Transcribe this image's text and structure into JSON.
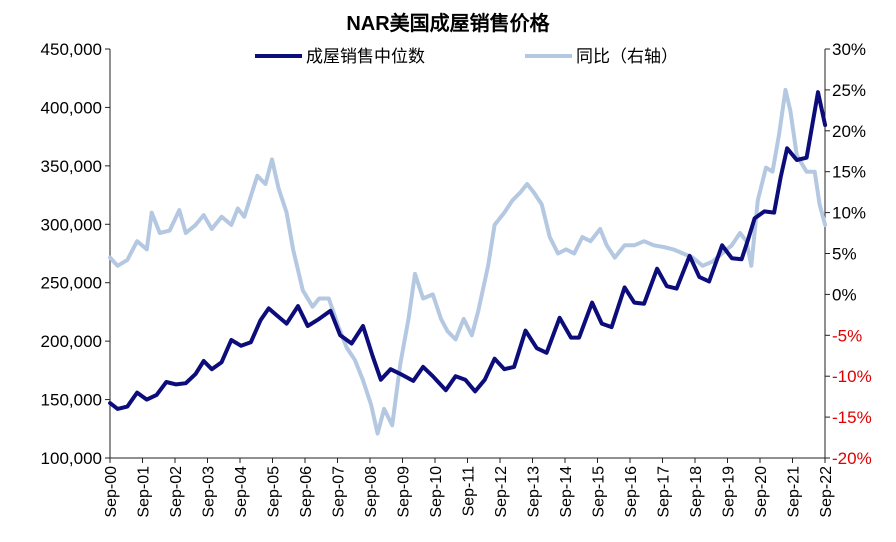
{
  "chart_data": {
    "type": "line",
    "title": "NAR美国成屋销售价格",
    "x_start": "2000-09",
    "x_end": "2022-09",
    "x_ticks": [
      "Sep-00",
      "Sep-01",
      "Sep-02",
      "Sep-03",
      "Sep-04",
      "Sep-05",
      "Sep-06",
      "Sep-07",
      "Sep-08",
      "Sep-09",
      "Sep-10",
      "Sep-11",
      "Sep-12",
      "Sep-13",
      "Sep-14",
      "Sep-15",
      "Sep-16",
      "Sep-17",
      "Sep-18",
      "Sep-19",
      "Sep-20",
      "Sep-21",
      "Sep-22"
    ],
    "left_axis": {
      "ylim": [
        100000,
        450000
      ],
      "ticks": [
        "100,000",
        "150,000",
        "200,000",
        "250,000",
        "300,000",
        "350,000",
        "400,000",
        "450,000"
      ]
    },
    "right_axis": {
      "ylim": [
        -20,
        30
      ],
      "ticks": [
        {
          "label": "-20%",
          "negative": true
        },
        {
          "label": "-15%",
          "negative": true
        },
        {
          "label": "-10%",
          "negative": true
        },
        {
          "label": "-5%",
          "negative": true
        },
        {
          "label": "0%",
          "negative": false
        },
        {
          "label": "5%",
          "negative": false
        },
        {
          "label": "10%",
          "negative": false
        },
        {
          "label": "15%",
          "negative": false
        },
        {
          "label": "20%",
          "negative": false
        },
        {
          "label": "25%",
          "negative": false
        },
        {
          "label": "30%",
          "negative": false
        }
      ]
    },
    "series": [
      {
        "name": "成屋销售中位数",
        "axis": "left",
        "color": "#0c0d7a",
        "points": [
          [
            2000.67,
            147000
          ],
          [
            2000.9,
            142000
          ],
          [
            2001.2,
            144000
          ],
          [
            2001.5,
            156000
          ],
          [
            2001.8,
            150000
          ],
          [
            2002.1,
            154000
          ],
          [
            2002.4,
            165000
          ],
          [
            2002.7,
            163000
          ],
          [
            2003.0,
            164000
          ],
          [
            2003.3,
            172000
          ],
          [
            2003.55,
            183000
          ],
          [
            2003.8,
            176000
          ],
          [
            2004.1,
            182000
          ],
          [
            2004.4,
            201000
          ],
          [
            2004.7,
            196000
          ],
          [
            2005.0,
            199000
          ],
          [
            2005.3,
            218000
          ],
          [
            2005.55,
            228000
          ],
          [
            2005.8,
            222000
          ],
          [
            2006.1,
            215000
          ],
          [
            2006.45,
            230000
          ],
          [
            2006.75,
            213000
          ],
          [
            2007.1,
            219000
          ],
          [
            2007.45,
            226000
          ],
          [
            2007.75,
            205000
          ],
          [
            2008.1,
            198000
          ],
          [
            2008.45,
            213000
          ],
          [
            2008.75,
            187000
          ],
          [
            2009.0,
            167000
          ],
          [
            2009.3,
            176000
          ],
          [
            2009.6,
            172000
          ],
          [
            2010.0,
            166000
          ],
          [
            2010.3,
            178000
          ],
          [
            2010.6,
            170000
          ],
          [
            2011.0,
            158000
          ],
          [
            2011.3,
            170000
          ],
          [
            2011.6,
            167000
          ],
          [
            2011.9,
            157000
          ],
          [
            2012.2,
            167000
          ],
          [
            2012.5,
            185000
          ],
          [
            2012.8,
            176000
          ],
          [
            2013.1,
            178000
          ],
          [
            2013.45,
            209000
          ],
          [
            2013.8,
            194000
          ],
          [
            2014.1,
            190000
          ],
          [
            2014.5,
            220000
          ],
          [
            2014.85,
            203000
          ],
          [
            2015.1,
            203000
          ],
          [
            2015.5,
            233000
          ],
          [
            2015.8,
            215000
          ],
          [
            2016.1,
            212000
          ],
          [
            2016.5,
            246000
          ],
          [
            2016.8,
            233000
          ],
          [
            2017.1,
            232000
          ],
          [
            2017.5,
            262000
          ],
          [
            2017.8,
            247000
          ],
          [
            2018.1,
            245000
          ],
          [
            2018.5,
            273000
          ],
          [
            2018.8,
            255000
          ],
          [
            2019.1,
            251000
          ],
          [
            2019.5,
            282000
          ],
          [
            2019.8,
            271000
          ],
          [
            2020.1,
            270000
          ],
          [
            2020.3,
            287000
          ],
          [
            2020.5,
            305000
          ],
          [
            2020.8,
            311000
          ],
          [
            2021.1,
            310000
          ],
          [
            2021.3,
            340000
          ],
          [
            2021.5,
            365000
          ],
          [
            2021.8,
            355000
          ],
          [
            2022.1,
            357000
          ],
          [
            2022.45,
            413000
          ],
          [
            2022.67,
            385000
          ]
        ]
      },
      {
        "name": "同比（右轴）",
        "axis": "right",
        "color": "#b4c8e2",
        "points": [
          [
            2000.67,
            4.5
          ],
          [
            2000.9,
            3.5
          ],
          [
            2001.2,
            4.2
          ],
          [
            2001.5,
            6.5
          ],
          [
            2001.8,
            5.5
          ],
          [
            2001.95,
            10.0
          ],
          [
            2002.2,
            7.5
          ],
          [
            2002.5,
            7.8
          ],
          [
            2002.8,
            10.3
          ],
          [
            2003.0,
            7.5
          ],
          [
            2003.3,
            8.5
          ],
          [
            2003.55,
            9.7
          ],
          [
            2003.8,
            8.0
          ],
          [
            2004.1,
            9.5
          ],
          [
            2004.4,
            8.5
          ],
          [
            2004.6,
            10.5
          ],
          [
            2004.8,
            9.5
          ],
          [
            2005.0,
            12.0
          ],
          [
            2005.2,
            14.5
          ],
          [
            2005.45,
            13.5
          ],
          [
            2005.65,
            16.5
          ],
          [
            2005.85,
            13.0
          ],
          [
            2006.1,
            10.0
          ],
          [
            2006.3,
            5.5
          ],
          [
            2006.6,
            0.5
          ],
          [
            2006.9,
            -1.5
          ],
          [
            2007.1,
            -0.5
          ],
          [
            2007.4,
            -0.5
          ],
          [
            2007.7,
            -4.0
          ],
          [
            2007.95,
            -6.5
          ],
          [
            2008.2,
            -8.0
          ],
          [
            2008.45,
            -10.5
          ],
          [
            2008.7,
            -13.5
          ],
          [
            2008.9,
            -17.0
          ],
          [
            2009.1,
            -14.0
          ],
          [
            2009.35,
            -16.0
          ],
          [
            2009.6,
            -8.5
          ],
          [
            2009.85,
            -3.0
          ],
          [
            2010.05,
            2.5
          ],
          [
            2010.3,
            -0.5
          ],
          [
            2010.6,
            0.0
          ],
          [
            2010.85,
            -3.0
          ],
          [
            2011.05,
            -4.5
          ],
          [
            2011.3,
            -5.5
          ],
          [
            2011.55,
            -3.0
          ],
          [
            2011.8,
            -5.0
          ],
          [
            2012.0,
            -2.0
          ],
          [
            2012.3,
            3.5
          ],
          [
            2012.5,
            8.5
          ],
          [
            2012.8,
            10.0
          ],
          [
            2013.05,
            11.5
          ],
          [
            2013.3,
            12.5
          ],
          [
            2013.5,
            13.5
          ],
          [
            2013.7,
            12.5
          ],
          [
            2013.95,
            11.0
          ],
          [
            2014.2,
            7.0
          ],
          [
            2014.45,
            5.0
          ],
          [
            2014.7,
            5.5
          ],
          [
            2014.95,
            5.0
          ],
          [
            2015.2,
            7.0
          ],
          [
            2015.45,
            6.5
          ],
          [
            2015.75,
            8.0
          ],
          [
            2015.95,
            6.0
          ],
          [
            2016.2,
            4.5
          ],
          [
            2016.5,
            6.0
          ],
          [
            2016.8,
            6.0
          ],
          [
            2017.1,
            6.5
          ],
          [
            2017.4,
            6.0
          ],
          [
            2017.7,
            5.8
          ],
          [
            2018.0,
            5.5
          ],
          [
            2018.3,
            5.0
          ],
          [
            2018.6,
            4.5
          ],
          [
            2018.9,
            3.5
          ],
          [
            2019.2,
            4.0
          ],
          [
            2019.5,
            5.0
          ],
          [
            2019.8,
            6.0
          ],
          [
            2020.05,
            7.5
          ],
          [
            2020.25,
            6.5
          ],
          [
            2020.4,
            3.5
          ],
          [
            2020.6,
            11.5
          ],
          [
            2020.85,
            15.5
          ],
          [
            2021.05,
            15.0
          ],
          [
            2021.25,
            19.5
          ],
          [
            2021.45,
            25.0
          ],
          [
            2021.6,
            22.5
          ],
          [
            2021.8,
            17.0
          ],
          [
            2022.1,
            15.0
          ],
          [
            2022.35,
            15.0
          ],
          [
            2022.5,
            11.0
          ],
          [
            2022.67,
            8.5
          ]
        ]
      }
    ]
  }
}
